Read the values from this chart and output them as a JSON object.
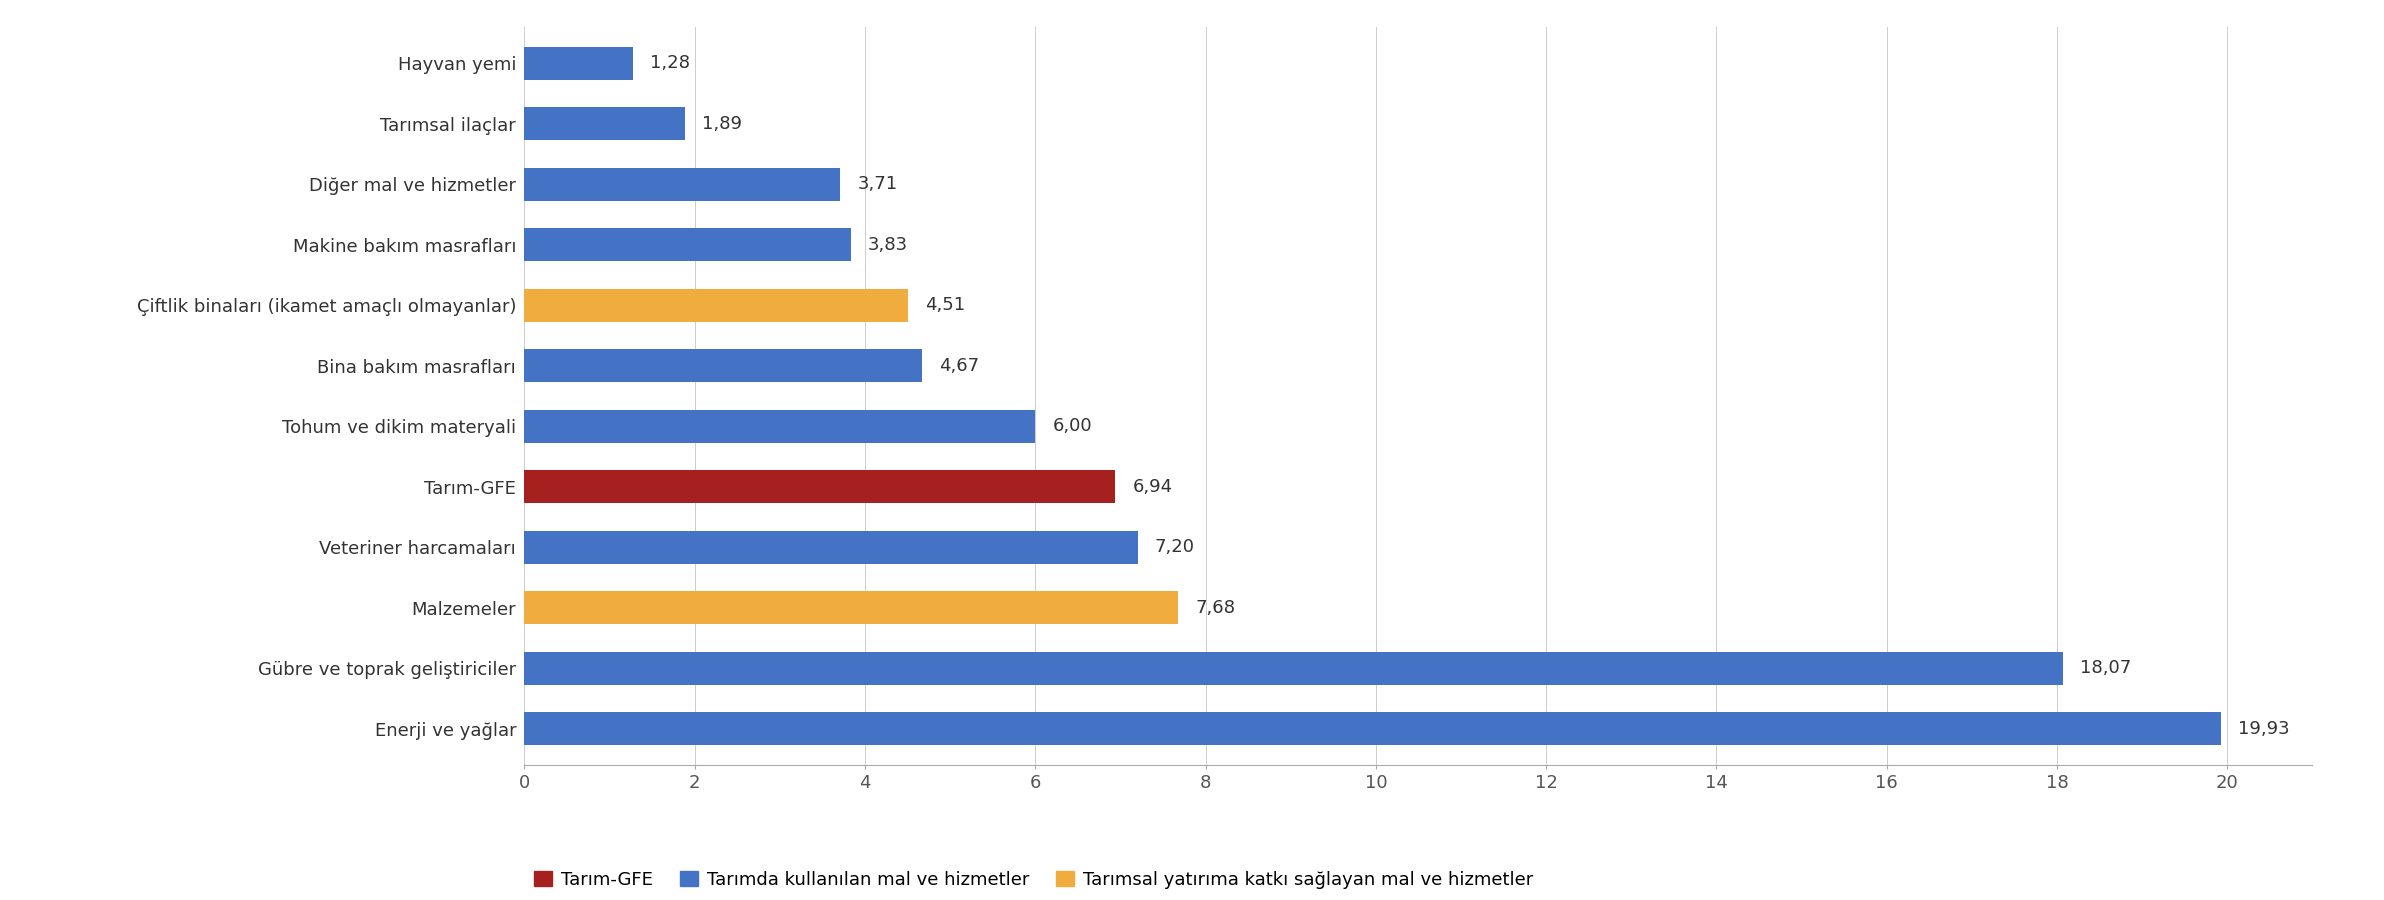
{
  "categories": [
    "Enerji ve yağlar",
    "Gübre ve toprak geliştiriciler",
    "Malzemeler",
    "Veteriner harcamaları",
    "Tarım-GFE",
    "Tohum ve dikim materyali",
    "Bina bakım masrafları",
    "Çiftlik binaları (ikamet amaçlı olmayanlar)",
    "Makine bakım masrafları",
    "Diğer mal ve hizmetler",
    "Tarımsal ilaçlar",
    "Hayvan yemi"
  ],
  "values": [
    19.93,
    18.07,
    7.68,
    7.2,
    6.94,
    6.0,
    4.67,
    4.51,
    3.83,
    3.71,
    1.89,
    1.28
  ],
  "colors": [
    "#4472C4",
    "#4472C4",
    "#F0AC3E",
    "#4472C4",
    "#A62020",
    "#4472C4",
    "#4472C4",
    "#F0AC3E",
    "#4472C4",
    "#4472C4",
    "#4472C4",
    "#4472C4"
  ],
  "legend_labels": [
    "Tarım-GFE",
    "Tarımda kullanılan mal ve hizmetler",
    "Tarımsal yatırıma katkı sağlayan mal ve hizmetler"
  ],
  "legend_colors": [
    "#A62020",
    "#4472C4",
    "#F0AC3E"
  ],
  "xlim": [
    0,
    21
  ],
  "xticks": [
    0,
    2,
    4,
    6,
    8,
    10,
    12,
    14,
    16,
    18,
    20
  ],
  "background_color": "#FFFFFF",
  "bar_height": 0.55,
  "value_label_fontsize": 13,
  "category_label_fontsize": 13,
  "legend_fontsize": 13,
  "figsize": [
    23.84,
    9.0
  ],
  "dpi": 100
}
